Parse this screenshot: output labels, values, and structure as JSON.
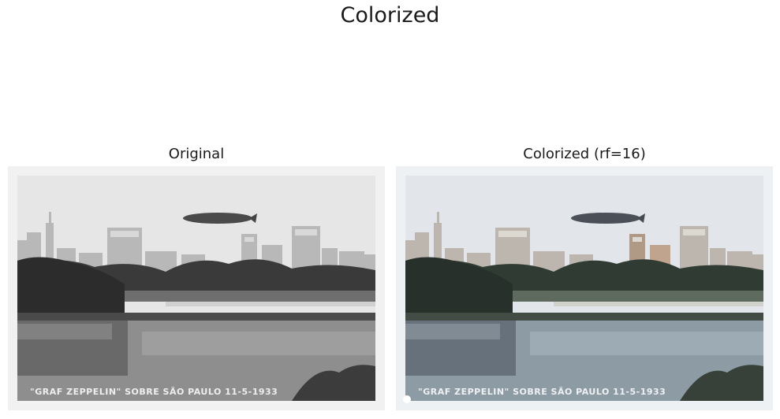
{
  "figure": {
    "title": "Colorized"
  },
  "panels": [
    {
      "title": "Original",
      "caption": "\"GRAF ZEPPELIN\" SOBRE SÃO PAULO   11-5-1933",
      "tone": "grayscale"
    },
    {
      "title": "Colorized (rf=16)",
      "caption": "\"GRAF ZEPPELIN\" SOBRE SÃO PAULO   11-5-1933",
      "tone": "colorized"
    }
  ],
  "colors": {
    "original_sky": "#e8e8e8",
    "original_water": "#8a8a8a",
    "original_trees": "#3a3a3a",
    "colorized_sky": "#e4e8ec",
    "colorized_water": "#8c9aa4",
    "colorized_trees": "#2f3a34",
    "border": "#f2f2f2"
  }
}
